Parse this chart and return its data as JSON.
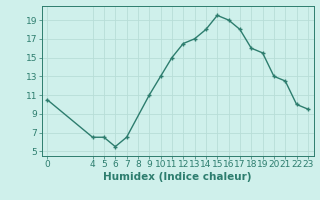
{
  "x": [
    0,
    4,
    5,
    6,
    7,
    9,
    10,
    11,
    12,
    13,
    14,
    15,
    16,
    17,
    18,
    19,
    20,
    21,
    22,
    23
  ],
  "y": [
    10.5,
    6.5,
    6.5,
    5.5,
    6.5,
    11.0,
    13.0,
    15.0,
    16.5,
    17.0,
    18.0,
    19.5,
    19.0,
    18.0,
    16.0,
    15.5,
    13.0,
    12.5,
    10.0,
    9.5
  ],
  "line_color": "#2d7d6e",
  "marker": "+",
  "bg_color": "#cff0eb",
  "grid_color": "#b8ddd7",
  "xlabel": "Humidex (Indice chaleur)",
  "xlim": [
    -0.5,
    23.5
  ],
  "ylim": [
    4.5,
    20.5
  ],
  "yticks": [
    5,
    7,
    9,
    11,
    13,
    15,
    17,
    19
  ],
  "xticks": [
    0,
    4,
    5,
    6,
    7,
    8,
    9,
    10,
    11,
    12,
    13,
    14,
    15,
    16,
    17,
    18,
    19,
    20,
    21,
    22,
    23
  ],
  "font_color": "#2d7d6e",
  "fontsize": 6.5,
  "label_fontsize": 7.5,
  "markersize": 3.5,
  "linewidth": 1.0
}
